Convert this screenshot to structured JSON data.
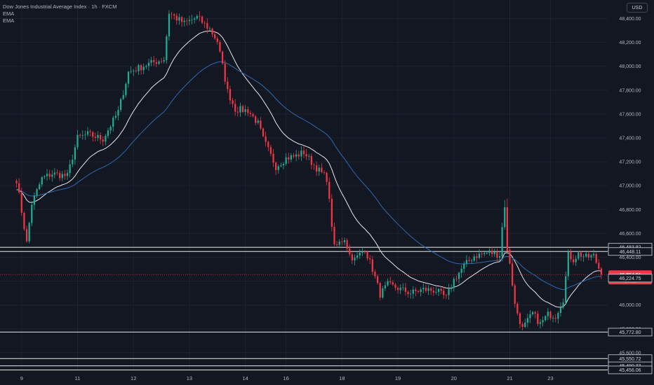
{
  "legend": {
    "title": "Dow Jones Industrial Average Index · 1h · FXCM",
    "ema1": "EMA",
    "ema2": "EMA"
  },
  "currency_button": "USD",
  "colors": {
    "background": "#131722",
    "grid": "#1e222d",
    "up": "#22ab94",
    "down": "#f23645",
    "ema_fast": "#e8e8e8",
    "ema_slow": "#2a6bb0",
    "level_line": "#e8e8e8",
    "price_label_bg": "#f23645"
  },
  "chart_data": {
    "type": "candlestick",
    "y_ticks": [
      "48,400.00",
      "48,200.00",
      "48,000.00",
      "47,800.00",
      "47,600.00",
      "47,400.00",
      "47,200.00",
      "47,000.00",
      "46,800.00",
      "46,600.00",
      "46,400.00",
      "46,200.00",
      "46,000.00",
      "45,800.00",
      "45,600.00"
    ],
    "x_ticks": [
      {
        "label": "9",
        "index": 2
      },
      {
        "label": "11",
        "index": 24
      },
      {
        "label": "12",
        "index": 46
      },
      {
        "label": "13",
        "index": 68
      },
      {
        "label": "14",
        "index": 90
      },
      {
        "label": "16",
        "index": 106
      },
      {
        "label": "18",
        "index": 128
      },
      {
        "label": "19",
        "index": 150
      },
      {
        "label": "20",
        "index": 172
      },
      {
        "label": "21",
        "index": 194
      },
      {
        "label": "23",
        "index": 210
      }
    ],
    "ylim": [
      45400,
      48520
    ],
    "x_range": [
      -6.5,
      232.5
    ],
    "horizontal_levels": [
      "46,483.82",
      "46,448.11",
      "45,772.80",
      "45,550.72",
      "45,490.33",
      "45,456.06"
    ],
    "last_price": {
      "price": "46,254.61",
      "countdown": "30:32"
    },
    "ema_value": "46,224.75",
    "anchors": [
      [
        0,
        47050
      ],
      [
        4,
        46520
      ],
      [
        6,
        46850
      ],
      [
        10,
        47060
      ],
      [
        14,
        47100
      ],
      [
        20,
        47080
      ],
      [
        24,
        47400
      ],
      [
        28,
        47430
      ],
      [
        34,
        47390
      ],
      [
        40,
        47620
      ],
      [
        44,
        47950
      ],
      [
        52,
        48020
      ],
      [
        58,
        48060
      ],
      [
        60,
        48450
      ],
      [
        63,
        48400
      ],
      [
        66,
        48360
      ],
      [
        68,
        48380
      ],
      [
        71,
        48410
      ],
      [
        76,
        48310
      ],
      [
        79,
        48210
      ],
      [
        83,
        47790
      ],
      [
        86,
        47640
      ],
      [
        91,
        47630
      ],
      [
        95,
        47520
      ],
      [
        97,
        47390
      ],
      [
        102,
        47160
      ],
      [
        106,
        47230
      ],
      [
        110,
        47250
      ],
      [
        113,
        47280
      ],
      [
        117,
        47170
      ],
      [
        122,
        47060
      ],
      [
        125,
        46480
      ],
      [
        129,
        46560
      ],
      [
        131,
        46420
      ],
      [
        133,
        46380
      ],
      [
        137,
        46470
      ],
      [
        140,
        46300
      ],
      [
        143,
        46090
      ],
      [
        146,
        46170
      ],
      [
        150,
        46140
      ],
      [
        155,
        46100
      ],
      [
        160,
        46130
      ],
      [
        165,
        46120
      ],
      [
        169,
        46060
      ],
      [
        172,
        46210
      ],
      [
        176,
        46330
      ],
      [
        180,
        46410
      ],
      [
        186,
        46440
      ],
      [
        190,
        46420
      ],
      [
        192,
        46880
      ],
      [
        193,
        46450
      ],
      [
        194,
        46360
      ],
      [
        196,
        46000
      ],
      [
        199,
        45800
      ],
      [
        203,
        45930
      ],
      [
        206,
        45840
      ],
      [
        209,
        45920
      ],
      [
        212,
        45910
      ],
      [
        215,
        46050
      ],
      [
        217,
        46420
      ],
      [
        219,
        46380
      ],
      [
        221,
        46430
      ],
      [
        224,
        46400
      ],
      [
        227,
        46410
      ],
      [
        230,
        46260
      ]
    ]
  }
}
